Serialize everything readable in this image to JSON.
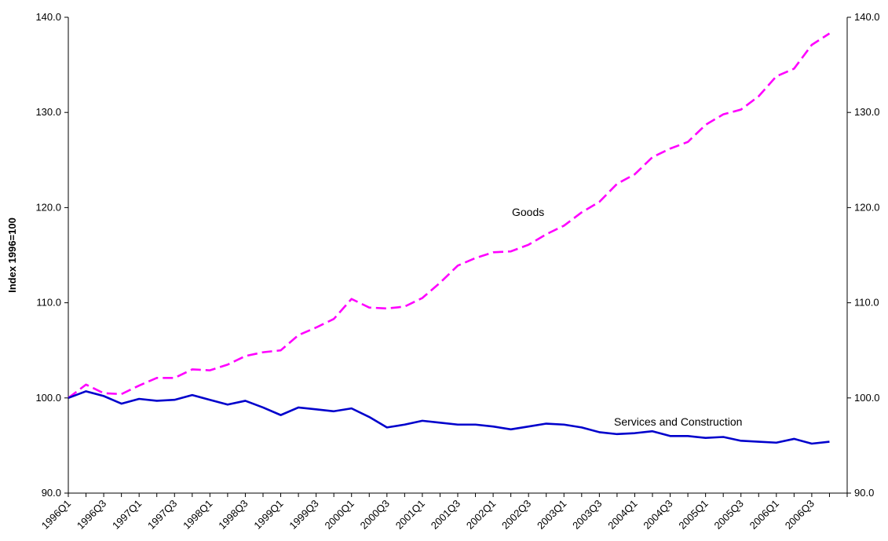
{
  "chart_data": {
    "type": "line",
    "title": "",
    "xlabel": "",
    "ylabel": "Index 1996=100",
    "ylim": [
      90,
      140
    ],
    "y_ticks": [
      "90.0",
      "100.0",
      "110.0",
      "120.0",
      "130.0",
      "140.0"
    ],
    "y_ticks_right": [
      "90.0",
      "100.0",
      "110.0",
      "120.0",
      "130.0",
      "140.0"
    ],
    "secondary_ylim": [
      90,
      140
    ],
    "grid": false,
    "legend": "none",
    "x": [
      "1996Q1",
      "1996Q2",
      "1996Q3",
      "1996Q4",
      "1997Q1",
      "1997Q2",
      "1997Q3",
      "1997Q4",
      "1998Q1",
      "1998Q2",
      "1998Q3",
      "1998Q4",
      "1999Q1",
      "1999Q2",
      "1999Q3",
      "1999Q4",
      "2000Q1",
      "2000Q2",
      "2000Q3",
      "2000Q4",
      "2001Q1",
      "2001Q2",
      "2001Q3",
      "2001Q4",
      "2002Q1",
      "2002Q2",
      "2002Q3",
      "2002Q4",
      "2003Q1",
      "2003Q2",
      "2003Q3",
      "2003Q4",
      "2004Q1",
      "2004Q2",
      "2004Q3",
      "2004Q4",
      "2005Q1",
      "2005Q2",
      "2005Q3",
      "2005Q4",
      "2006Q1",
      "2006Q2",
      "2006Q3",
      "2006Q4"
    ],
    "x_tick_labels": [
      "1996Q1",
      "1996Q3",
      "1997Q1",
      "1997Q3",
      "1998Q1",
      "1998Q3",
      "1999Q1",
      "1999Q3",
      "2000Q1",
      "2000Q3",
      "2001Q1",
      "2001Q3",
      "2002Q1",
      "2002Q3",
      "2003Q1",
      "2003Q3",
      "2004Q1",
      "2004Q3",
      "2005Q1",
      "2005Q3",
      "2006Q1",
      "2006Q3"
    ],
    "series": [
      {
        "name": "Goods",
        "color": "#FF00FF",
        "style": "dashed",
        "values": [
          100.0,
          101.4,
          100.5,
          100.4,
          101.3,
          102.1,
          102.1,
          103.0,
          102.9,
          103.5,
          104.4,
          104.8,
          105.0,
          106.6,
          107.4,
          108.3,
          110.4,
          109.5,
          109.4,
          109.6,
          110.5,
          112.1,
          113.9,
          114.7,
          115.3,
          115.4,
          116.1,
          117.2,
          118.1,
          119.5,
          120.6,
          122.5,
          123.5,
          125.3,
          126.2,
          126.9,
          128.7,
          129.8,
          130.3,
          131.7,
          133.8,
          134.6,
          137.1,
          138.3
        ]
      },
      {
        "name": "Services and Construction",
        "color": "#0000CC",
        "style": "solid",
        "values": [
          100.0,
          100.7,
          100.2,
          99.4,
          99.9,
          99.7,
          99.8,
          100.3,
          99.8,
          99.3,
          99.7,
          99.0,
          98.2,
          99.0,
          98.8,
          98.6,
          98.9,
          98.0,
          96.9,
          97.2,
          97.6,
          97.4,
          97.2,
          97.2,
          97.0,
          96.7,
          97.0,
          97.3,
          97.2,
          96.9,
          96.4,
          96.2,
          96.3,
          96.5,
          96.0,
          96.0,
          95.8,
          95.9,
          95.5,
          95.4,
          95.3,
          95.7,
          95.2,
          95.4
        ]
      }
    ]
  }
}
